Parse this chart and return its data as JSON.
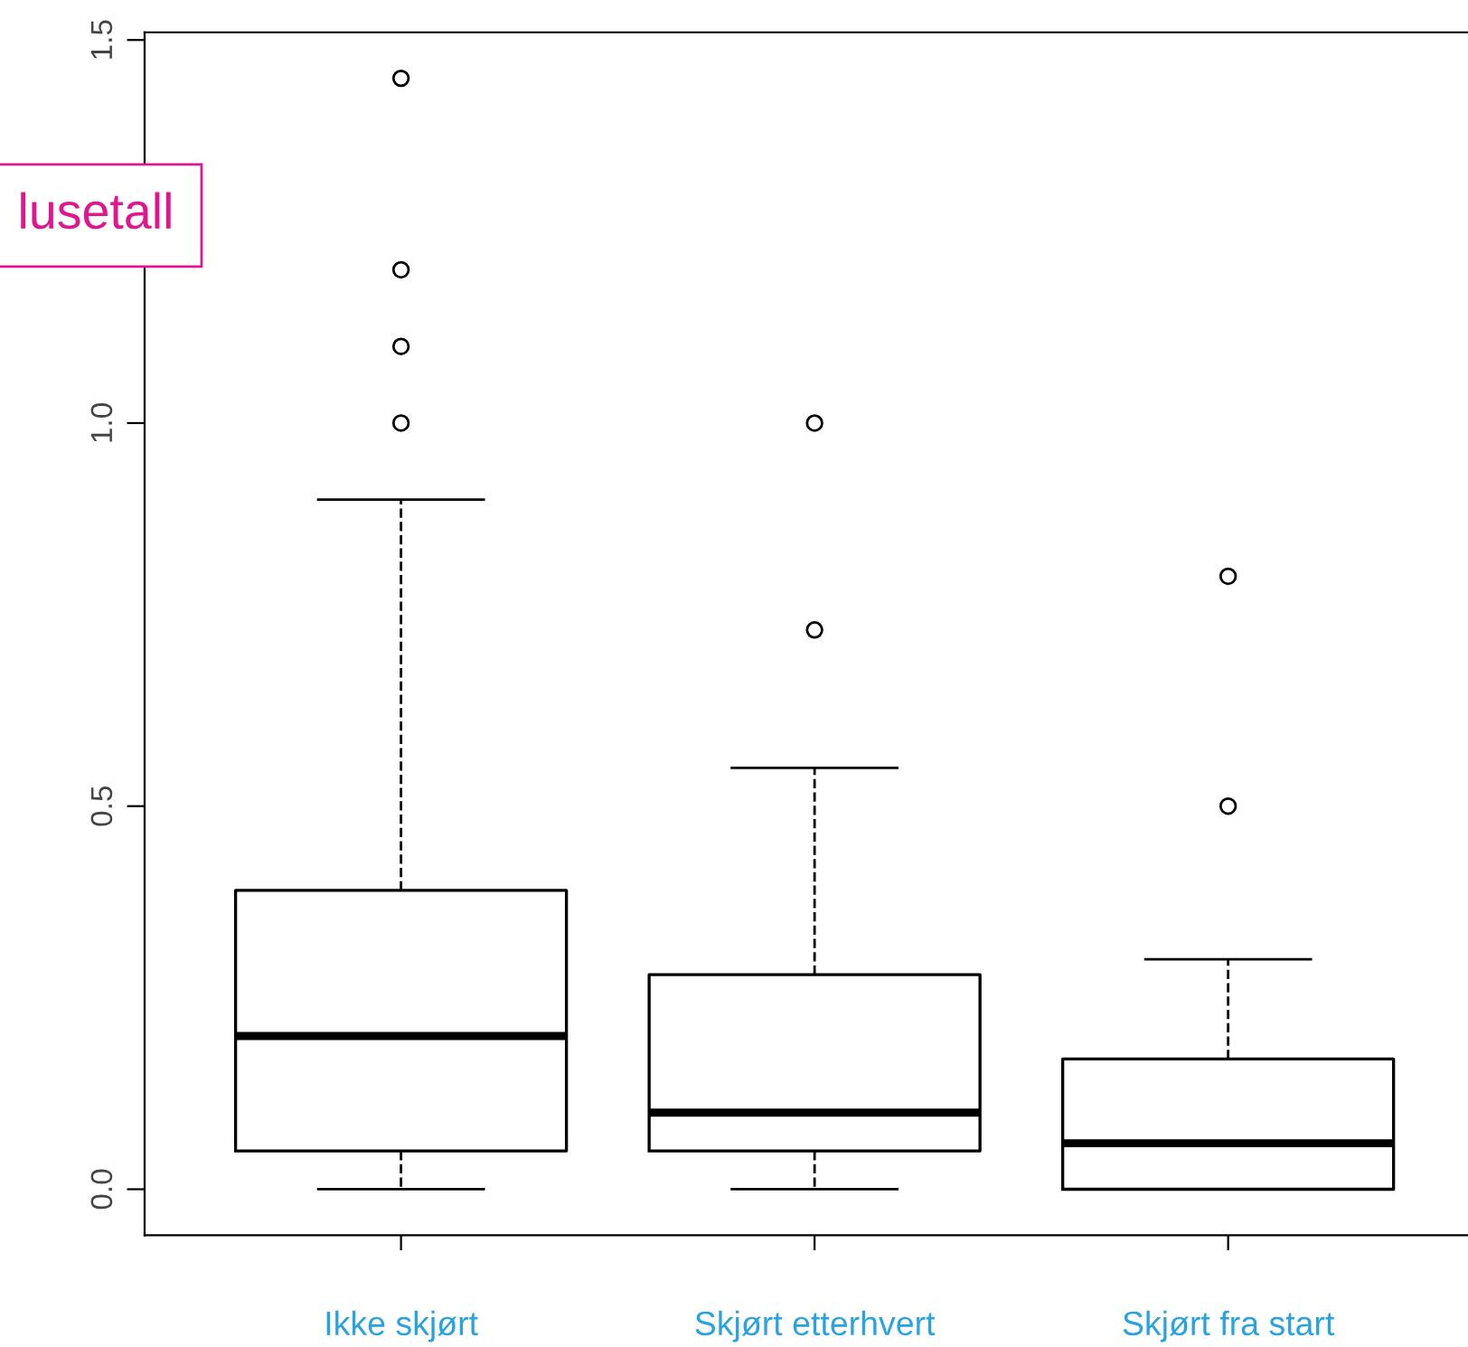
{
  "chart_data": {
    "type": "box",
    "categories": [
      "Ikke skjørt",
      "Skjørt etterhvert",
      "Skjørt fra start"
    ],
    "boxes": [
      {
        "low": 0,
        "q1": 0.05,
        "median": 0.2,
        "q3": 0.39,
        "high": 0.9,
        "outliers": [
          1.0,
          1.1,
          1.2,
          1.45
        ]
      },
      {
        "low": 0,
        "q1": 0.05,
        "median": 0.1,
        "q3": 0.28,
        "high": 0.55,
        "outliers": [
          0.73,
          1.0
        ]
      },
      {
        "low": 0,
        "q1": 0,
        "median": 0.06,
        "q3": 0.17,
        "high": 0.3,
        "outliers": [
          0.5,
          0.8
        ]
      }
    ],
    "ylim": [
      -0.06,
      1.51
    ],
    "yticks": [
      {
        "value": 0,
        "label": "0.0"
      },
      {
        "value": 0.5,
        "label": "0.5"
      },
      {
        "value": 1.0,
        "label": "1.0"
      },
      {
        "value": 1.5,
        "label": "1.5"
      }
    ],
    "color": "#000000",
    "annotations": [
      "lusetall"
    ],
    "grid": false,
    "legend": false
  }
}
